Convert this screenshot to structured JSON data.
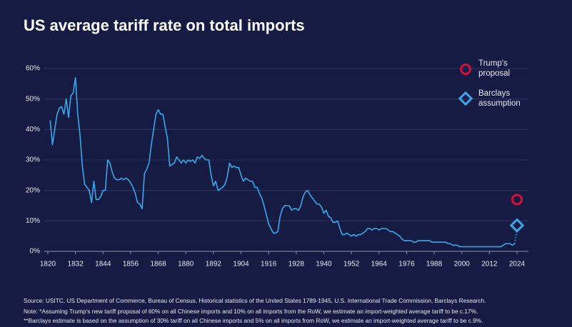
{
  "chart_data": {
    "type": "line",
    "title": "US average tariff rate on total imports",
    "x": [
      1821,
      1822,
      1823,
      1824,
      1825,
      1826,
      1827,
      1828,
      1829,
      1830,
      1831,
      1832,
      1833,
      1834,
      1835,
      1836,
      1837,
      1838,
      1839,
      1840,
      1841,
      1842,
      1843,
      1844,
      1845,
      1846,
      1847,
      1848,
      1849,
      1850,
      1851,
      1852,
      1853,
      1854,
      1855,
      1856,
      1857,
      1858,
      1859,
      1860,
      1861,
      1862,
      1863,
      1864,
      1865,
      1866,
      1867,
      1868,
      1869,
      1870,
      1871,
      1872,
      1873,
      1874,
      1875,
      1876,
      1877,
      1878,
      1879,
      1880,
      1881,
      1882,
      1883,
      1884,
      1885,
      1886,
      1887,
      1888,
      1889,
      1890,
      1891,
      1892,
      1893,
      1894,
      1895,
      1896,
      1897,
      1898,
      1899,
      1900,
      1901,
      1902,
      1903,
      1904,
      1905,
      1906,
      1907,
      1908,
      1909,
      1910,
      1911,
      1912,
      1913,
      1914,
      1915,
      1916,
      1917,
      1918,
      1919,
      1920,
      1921,
      1922,
      1923,
      1924,
      1925,
      1926,
      1927,
      1928,
      1929,
      1930,
      1931,
      1932,
      1933,
      1934,
      1935,
      1936,
      1937,
      1938,
      1939,
      1940,
      1941,
      1942,
      1943,
      1944,
      1945,
      1946,
      1947,
      1948,
      1949,
      1950,
      1951,
      1952,
      1953,
      1954,
      1955,
      1956,
      1957,
      1958,
      1959,
      1960,
      1961,
      1962,
      1963,
      1964,
      1965,
      1966,
      1967,
      1968,
      1969,
      1970,
      1971,
      1972,
      1973,
      1974,
      1975,
      1976,
      1977,
      1978,
      1979,
      1980,
      1981,
      1982,
      1983,
      1984,
      1985,
      1986,
      1987,
      1988,
      1989,
      1990,
      1991,
      1992,
      1993,
      1994,
      1995,
      1996,
      1997,
      1998,
      1999,
      2000,
      2001,
      2002,
      2003,
      2004,
      2005,
      2006,
      2007,
      2008,
      2009,
      2010,
      2011,
      2012,
      2013,
      2014,
      2015,
      2016,
      2017,
      2018,
      2019,
      2020,
      2021,
      2022,
      2023
    ],
    "values": [
      43,
      35,
      40,
      45,
      47,
      47.5,
      45,
      50,
      44,
      51,
      52,
      57,
      45,
      38,
      28,
      22,
      21,
      20,
      16,
      23,
      17,
      17,
      18,
      20,
      20,
      30,
      29,
      26,
      24,
      23.5,
      23.5,
      24,
      23.5,
      24,
      23.5,
      22.5,
      21,
      19,
      16,
      15.5,
      14,
      25.5,
      27,
      29,
      35,
      40,
      45,
      46.5,
      45,
      45,
      41,
      37,
      28,
      28.5,
      29,
      31,
      30,
      29,
      30,
      29,
      30,
      29.5,
      30,
      29,
      31,
      30.5,
      31.5,
      30.5,
      30,
      30,
      25,
      21.5,
      23,
      20,
      20.5,
      21,
      22,
      24.5,
      29,
      27.5,
      28,
      27.5,
      27.5,
      25,
      23,
      24,
      23.5,
      23,
      23,
      21,
      21,
      19,
      17.5,
      15,
      12,
      9,
      7.5,
      6,
      6,
      6.5,
      11.5,
      14,
      15,
      15,
      15,
      13.5,
      14,
      14,
      13.5,
      15,
      18,
      19.5,
      20,
      18.5,
      17.5,
      16.5,
      15.5,
      15.5,
      14.5,
      12.5,
      13.5,
      11.5,
      11,
      9.5,
      9.5,
      10,
      7.5,
      5.5,
      5.5,
      6,
      5.5,
      5,
      5.5,
      5,
      5.5,
      5.5,
      6,
      6.5,
      7.5,
      7.5,
      7,
      7.5,
      7.5,
      7,
      7.5,
      7.5,
      7.5,
      7,
      6.5,
      6.5,
      6,
      5.5,
      5,
      4,
      3.5,
      3.5,
      3.5,
      3.5,
      3,
      3,
      3.5,
      3.5,
      3.5,
      3.5,
      3.5,
      3.5,
      3,
      3,
      3,
      3,
      3,
      3,
      3,
      2.5,
      2.5,
      2,
      2,
      2,
      1.5,
      1.5,
      1.5,
      1.5,
      1.5,
      1.5,
      1.5,
      1.5,
      1.5,
      1.5,
      1.5,
      1.5,
      1.5,
      1.5,
      1.5,
      1.5,
      1.5,
      1.5,
      1.5,
      2,
      2.5,
      2.5,
      2.5,
      2,
      2.5
    ],
    "color": "#3aa8e8",
    "markers": [
      {
        "name": "Trump's proposal",
        "x": 2024,
        "value": 17,
        "color": "#d0103a",
        "shape": "circle"
      },
      {
        "name": "Barclays assumption",
        "x": 2024,
        "value": 8.5,
        "color": "#3aa8e8",
        "shape": "diamond"
      }
    ],
    "xlim": [
      1820,
      2024
    ],
    "xticks": [
      1820,
      1832,
      1844,
      1856,
      1868,
      1880,
      1892,
      1904,
      1916,
      1928,
      1940,
      1952,
      1964,
      1976,
      1988,
      2000,
      2012,
      2024
    ],
    "ylim": [
      0,
      60
    ],
    "yticks": [
      {
        "value": 0,
        "label": "0%"
      },
      {
        "value": 10,
        "label": "10%"
      },
      {
        "value": 20,
        "label": "20%"
      },
      {
        "value": 30,
        "label": "30%"
      },
      {
        "value": 40,
        "label": "40%"
      },
      {
        "value": 50,
        "label": "50%"
      },
      {
        "value": 60,
        "label": "60%"
      }
    ],
    "grid": true,
    "source": "Source: USITC, US Department of Commerce, Bureau of Census, Historical statistics of the United States 1789-1945, U.S. International Trade Commission, Barclays Research.",
    "notes": [
      "Note: *Assuming Trump's new tariff proposal of 60% on all Chinese imports and 10% on all imports from the RoW, we estimate an import-weighted average tariff to be c.17%.",
      "**Barclays estimate is based on the assumption of  30% tariff on all Chinese imports and 5% on all imports from RoW, we estimate an import-weighted average tariff to be c.9%."
    ]
  }
}
